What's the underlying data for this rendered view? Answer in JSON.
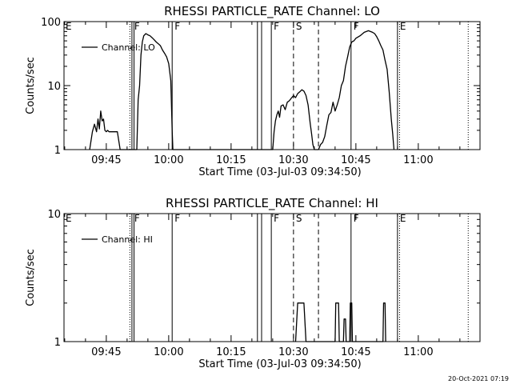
{
  "chart_data": [
    {
      "type": "line",
      "title": "RHESSI PARTICLE_RATE Channel: LO",
      "xlabel": "Start Time (03-Jul-03 09:34:50)",
      "ylabel": "Counts/sec",
      "yscale": "log",
      "ylim": [
        1,
        100
      ],
      "y_ticks": [
        "1",
        "10",
        "100"
      ],
      "xlim": [
        "09:34:50",
        "11:14:50"
      ],
      "x_ticks": [
        "09:45",
        "10:00",
        "10:15",
        "10:30",
        "10:45",
        "11:00"
      ],
      "legend": [
        "Channel: LO"
      ],
      "legend_position": "upper-left",
      "series": [
        {
          "name": "Channel: LO",
          "x": [
            "09:41:00",
            "09:41:40",
            "09:42:10",
            "09:42:40",
            "09:43:00",
            "09:43:20",
            "09:43:40",
            "09:44:00",
            "09:44:20",
            "09:44:40",
            "09:45:00",
            "09:45:20",
            "09:45:40",
            "09:46:10",
            "09:47:00",
            "09:47:40",
            "09:48:20",
            "09:49:20",
            "09:51:00",
            "09:52:20",
            "09:52:40",
            "09:53:00",
            "09:53:20",
            "09:53:40",
            "09:54:00",
            "09:54:30",
            "09:55:00",
            "09:55:30",
            "09:56:00",
            "09:56:30",
            "09:57:00",
            "09:57:30",
            "09:58:00",
            "09:58:30",
            "09:59:00",
            "09:59:30",
            "10:00:00",
            "10:00:30",
            "10:00:50",
            "10:01:00",
            "10:25:00",
            "10:25:20",
            "10:25:40",
            "10:26:00",
            "10:26:20",
            "10:26:40",
            "10:27:00",
            "10:27:30",
            "10:28:00",
            "10:28:30",
            "10:29:00",
            "10:29:30",
            "10:30:00",
            "10:30:30",
            "10:31:00",
            "10:31:30",
            "10:32:00",
            "10:32:30",
            "10:33:00",
            "10:33:30",
            "10:34:00",
            "10:34:20",
            "10:34:40",
            "10:35:00",
            "10:35:30",
            "10:36:00",
            "10:36:30",
            "10:37:00",
            "10:37:30",
            "10:38:00",
            "10:38:30",
            "10:39:00",
            "10:39:30",
            "10:40:00",
            "10:40:30",
            "10:41:00",
            "10:41:30",
            "10:42:00",
            "10:42:30",
            "10:43:00",
            "10:43:30",
            "10:44:00",
            "10:44:30",
            "10:45:00",
            "10:46:00",
            "10:47:00",
            "10:48:00",
            "10:48:30",
            "10:49:00",
            "10:49:30",
            "10:50:00",
            "10:50:30",
            "10:51:00",
            "10:51:30",
            "10:52:00",
            "10:52:30",
            "10:53:00",
            "10:53:30",
            "10:53:50",
            "10:54:10"
          ],
          "values": [
            1,
            1.9,
            2.5,
            1.9,
            3,
            2.1,
            4,
            2.8,
            3,
            2,
            1.9,
            2,
            1.9,
            1.9,
            1.9,
            1.9,
            1,
            1,
            1,
            1,
            6,
            10,
            30,
            48,
            60,
            65,
            62,
            60,
            56,
            52,
            48,
            45,
            42,
            36,
            32,
            28,
            22,
            12,
            2,
            1,
            1,
            1.9,
            2.8,
            3.5,
            4,
            3.2,
            4.8,
            5,
            4.2,
            5.5,
            5.8,
            6.4,
            7,
            6.5,
            7.5,
            8,
            8.6,
            8.2,
            7,
            5,
            2.6,
            1.8,
            1.2,
            1,
            1,
            1,
            1.2,
            1.3,
            1.6,
            2.4,
            3.5,
            3.8,
            5.5,
            4,
            5,
            6.5,
            10,
            12,
            20,
            28,
            40,
            48,
            50,
            55,
            60,
            68,
            72,
            70,
            68,
            65,
            58,
            50,
            42,
            36,
            25,
            18,
            8,
            3,
            1.8,
            1
          ]
        }
      ],
      "markers": [
        {
          "time": "09:50:40",
          "style": "dotted"
        },
        {
          "time": "09:51:10",
          "label": "F",
          "style": "solid"
        },
        {
          "time": "09:51:40",
          "style": "solid"
        },
        {
          "time": "10:00:50",
          "label": "F",
          "style": "solid"
        },
        {
          "time": "10:21:20",
          "style": "solid"
        },
        {
          "time": "10:22:20",
          "style": "solid"
        },
        {
          "time": "10:24:40",
          "label": "F",
          "style": "solid"
        },
        {
          "time": "10:30:00",
          "label": "S",
          "style": "dashed"
        },
        {
          "time": "10:36:00",
          "style": "dashed"
        },
        {
          "time": "10:43:50",
          "label": "F",
          "style": "solid"
        },
        {
          "time": "10:55:00",
          "label": "E",
          "style": "solid"
        },
        {
          "time": "10:55:30",
          "style": "dotted"
        },
        {
          "time": "11:12:00",
          "style": "dotted"
        }
      ],
      "left_label": "E"
    },
    {
      "type": "line",
      "title": "RHESSI PARTICLE_RATE Channel: HI",
      "xlabel": "Start Time (03-Jul-03 09:34:50)",
      "ylabel": "Counts/sec",
      "yscale": "log",
      "ylim": [
        1,
        10
      ],
      "y_ticks": [
        "1",
        "10"
      ],
      "xlim": [
        "09:34:50",
        "11:14:50"
      ],
      "x_ticks": [
        "09:45",
        "10:00",
        "10:15",
        "10:30",
        "10:45",
        "11:00"
      ],
      "legend": [
        "Channel: HI"
      ],
      "legend_position": "upper-left",
      "series": [
        {
          "name": "Channel: HI",
          "x": [
            "10:30:30",
            "10:31:00",
            "10:32:30",
            "10:33:00",
            "10:40:00",
            "10:40:10",
            "10:40:50",
            "10:41:00",
            "10:42:00",
            "10:42:10",
            "10:42:30",
            "10:42:40",
            "10:43:30",
            "10:43:40",
            "10:44:00",
            "10:44:10",
            "10:51:30",
            "10:51:40",
            "10:52:00",
            "10:52:10"
          ],
          "values": [
            1,
            2,
            2,
            1,
            1,
            2,
            2,
            1,
            1,
            1.5,
            1.5,
            1,
            1,
            2,
            2,
            1,
            1,
            2,
            2,
            1
          ]
        }
      ],
      "markers": [
        {
          "time": "09:50:40",
          "style": "dotted"
        },
        {
          "time": "09:51:10",
          "label": "F",
          "style": "solid"
        },
        {
          "time": "09:51:40",
          "style": "solid"
        },
        {
          "time": "10:00:50",
          "label": "F",
          "style": "solid"
        },
        {
          "time": "10:21:20",
          "style": "solid"
        },
        {
          "time": "10:22:20",
          "style": "solid"
        },
        {
          "time": "10:24:40",
          "label": "F",
          "style": "solid"
        },
        {
          "time": "10:30:00",
          "label": "S",
          "style": "dashed"
        },
        {
          "time": "10:36:00",
          "style": "dashed"
        },
        {
          "time": "10:43:50",
          "label": "F",
          "style": "solid"
        },
        {
          "time": "10:55:00",
          "label": "E",
          "style": "solid"
        },
        {
          "time": "10:55:30",
          "style": "dotted"
        },
        {
          "time": "11:12:00",
          "style": "dotted"
        }
      ],
      "left_label": "E"
    }
  ],
  "footer": {
    "timestamp": "20-Oct-2021 07:19"
  }
}
